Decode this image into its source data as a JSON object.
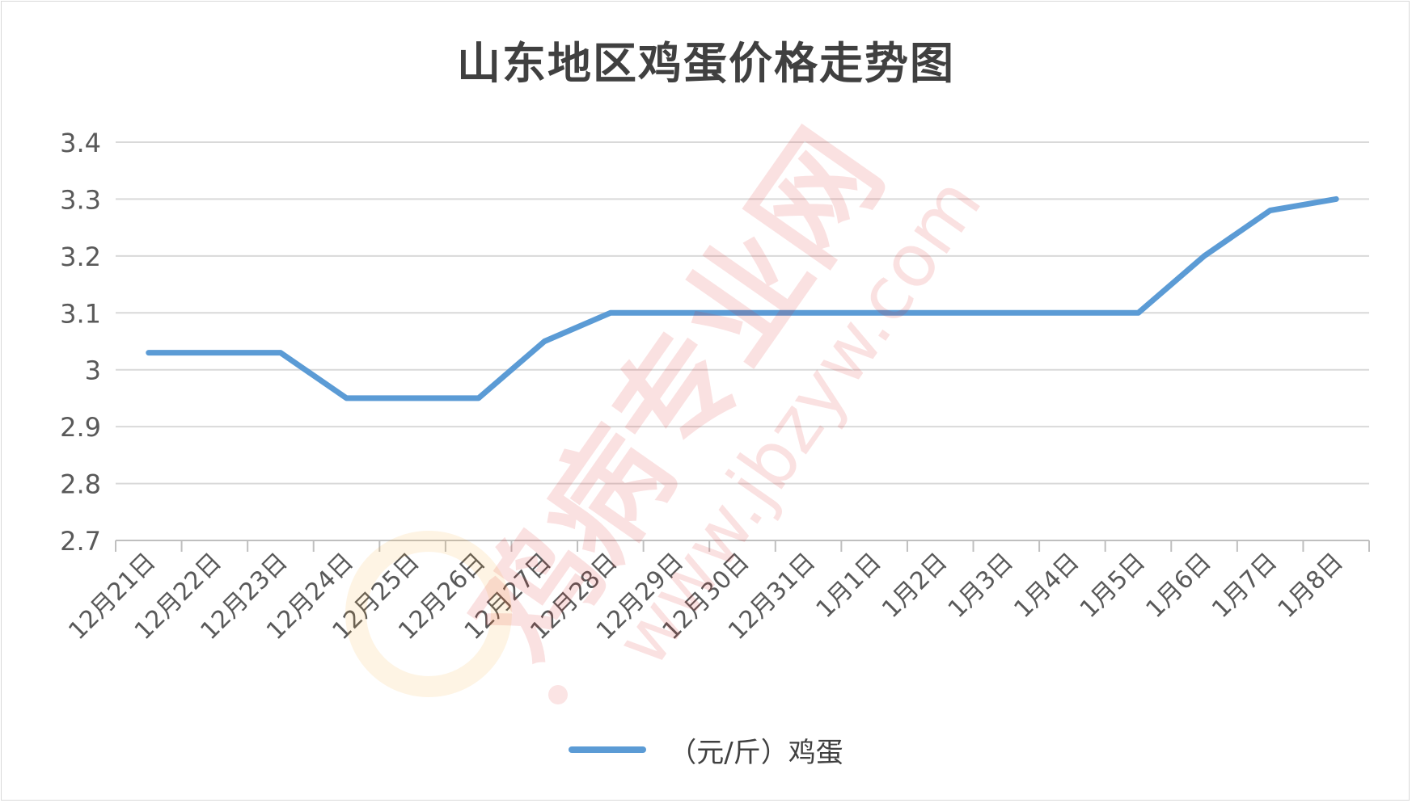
{
  "chart_data": {
    "type": "line",
    "title": "山东地区鸡蛋价格走势图",
    "categories": [
      "12月21日",
      "12月22日",
      "12月23日",
      "12月24日",
      "12月25日",
      "12月26日",
      "12月27日",
      "12月28日",
      "12月29日",
      "12月30日",
      "12月31日",
      "1月1日",
      "1月2日",
      "1月3日",
      "1月4日",
      "1月5日",
      "1月6日",
      "1月7日",
      "1月8日"
    ],
    "series": [
      {
        "name": "（元/斤）鸡蛋",
        "color": "#5b9bd5",
        "values": [
          3.03,
          3.03,
          3.03,
          2.95,
          2.95,
          2.95,
          3.05,
          3.1,
          3.1,
          3.1,
          3.1,
          3.1,
          3.1,
          3.1,
          3.1,
          3.1,
          3.2,
          3.28,
          3.3
        ]
      }
    ],
    "ylim": [
      2.7,
      3.4
    ],
    "yticks": [
      "2.7",
      "2.8",
      "2.9",
      "3",
      "3.1",
      "3.2",
      "3.3",
      "3.4"
    ],
    "grid": true,
    "legend_position": "bottom",
    "xlabel": "",
    "ylabel": ""
  },
  "watermark": {
    "text_cn": "鸡病专业网",
    "text_url": "www.jbzyw.com"
  }
}
